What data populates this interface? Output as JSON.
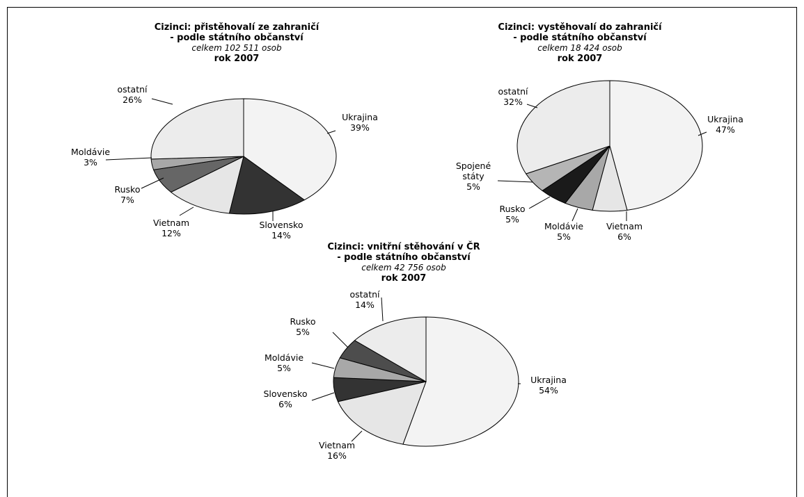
{
  "chart_data": [
    {
      "type": "pie",
      "title": "Cizinci: přistěhovalí ze zahraničí\n- podle státního občanství",
      "subtitle": "celkem 102 511 osob",
      "year": "rok 2007",
      "slices": [
        {
          "label": "Ukrajina",
          "value": 39,
          "value_text": "39%",
          "color": "#f3f3f3"
        },
        {
          "label": "Slovensko",
          "value": 14,
          "value_text": "14%",
          "color": "#333333"
        },
        {
          "label": "Vietnam",
          "value": 12,
          "value_text": "12%",
          "color": "#e6e6e6"
        },
        {
          "label": "Rusko",
          "value": 7,
          "value_text": "7%",
          "color": "#666666"
        },
        {
          "label": "Moldávie",
          "value": 3,
          "value_text": "3%",
          "color": "#a8a8a8"
        },
        {
          "label": "ostatní",
          "value": 26,
          "value_text": "26%",
          "color": "#ececec"
        }
      ]
    },
    {
      "type": "pie",
      "title": "Cizinci: vystěhovalí do zahraničí\n- podle státního občanství",
      "subtitle": "celkem 18 424 osob",
      "year": "rok 2007",
      "slices": [
        {
          "label": "Ukrajina",
          "value": 47,
          "value_text": "47%",
          "color": "#f3f3f3"
        },
        {
          "label": "Vietnam",
          "value": 6,
          "value_text": "6%",
          "color": "#e6e6e6"
        },
        {
          "label": "Moldávie",
          "value": 5,
          "value_text": "5%",
          "color": "#a8a8a8"
        },
        {
          "label": "Rusko",
          "value": 5,
          "value_text": "5%",
          "color": "#1a1a1a"
        },
        {
          "label": "Spojené\nstáty",
          "value": 5,
          "value_text": "5%",
          "color": "#b5b5b5"
        },
        {
          "label": "ostatní",
          "value": 32,
          "value_text": "32%",
          "color": "#ececec"
        }
      ]
    },
    {
      "type": "pie",
      "title": "Cizinci: vnitřní stěhování v ČR\n- podle státního občanství",
      "subtitle": "celkem 42 756 osob",
      "year": "rok 2007",
      "slices": [
        {
          "label": "Ukrajina",
          "value": 54,
          "value_text": "54%",
          "color": "#f3f3f3"
        },
        {
          "label": "Vietnam",
          "value": 16,
          "value_text": "16%",
          "color": "#e6e6e6"
        },
        {
          "label": "Slovensko",
          "value": 6,
          "value_text": "6%",
          "color": "#333333"
        },
        {
          "label": "Moldávie",
          "value": 5,
          "value_text": "5%",
          "color": "#a8a8a8"
        },
        {
          "label": "Rusko",
          "value": 5,
          "value_text": "5%",
          "color": "#4d4d4d"
        },
        {
          "label": "ostatní",
          "value": 14,
          "value_text": "14%",
          "color": "#ececec"
        }
      ]
    }
  ]
}
